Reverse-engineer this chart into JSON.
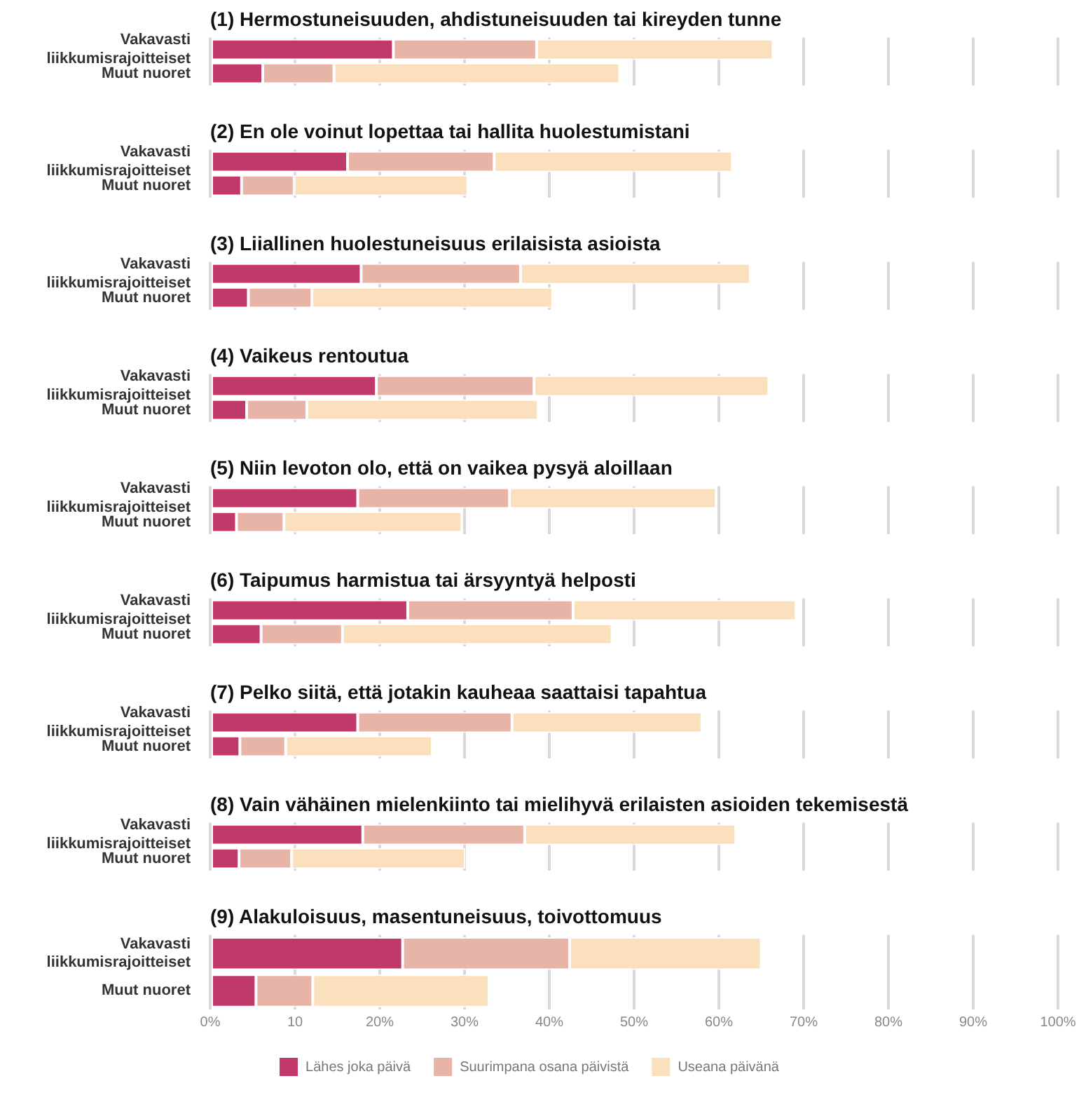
{
  "chart_data": [
    {
      "type": "bar",
      "orientation": "horizontal",
      "stacked": true,
      "title": "(1) Hermostuneisuuden, ahdistuneisuuden tai kireyden tunne",
      "categories": [
        "Vakavasti liikkumisrajoitteiset",
        "Muut nuoret"
      ],
      "series": [
        {
          "color": "#c0396b",
          "values": [
            21.6,
            6.2
          ]
        },
        {
          "color": "#e8b4a8",
          "values": [
            16.9,
            8.4
          ]
        },
        {
          "color": "#fbe0bd",
          "values": [
            27.9,
            33.7
          ]
        }
      ],
      "xlim": [
        0,
        100
      ],
      "xticks": [
        {
          "value": 0,
          "label": null
        },
        {
          "value": 10,
          "label": null
        },
        {
          "value": 20,
          "label": null
        },
        {
          "value": 30,
          "label": null
        },
        {
          "value": 40,
          "label": null
        },
        {
          "value": 50,
          "label": null
        },
        {
          "value": 60,
          "label": null
        },
        {
          "value": 70,
          "label": null
        },
        {
          "value": 80,
          "label": null
        },
        {
          "value": 90,
          "label": null
        },
        {
          "value": 100,
          "label": null
        }
      ],
      "grid": "x",
      "tick_labels": "y"
    },
    {
      "type": "bar",
      "orientation": "horizontal",
      "stacked": true,
      "title": "(2) En ole voinut lopettaa tai hallita huolestumistani",
      "categories": [
        "Vakavasti liikkumisrajoitteiset",
        "Muut nuoret"
      ],
      "series": [
        {
          "color": "#c0396b",
          "values": [
            16.2,
            3.7
          ]
        },
        {
          "color": "#e8b4a8",
          "values": [
            17.3,
            6.2
          ]
        },
        {
          "color": "#fbe0bd",
          "values": [
            28.1,
            20.5
          ]
        }
      ],
      "xlim": [
        0,
        100
      ],
      "xticks": [
        {
          "value": 0,
          "label": null
        },
        {
          "value": 10,
          "label": null
        },
        {
          "value": 20,
          "label": null
        },
        {
          "value": 30,
          "label": null
        },
        {
          "value": 40,
          "label": null
        },
        {
          "value": 50,
          "label": null
        },
        {
          "value": 60,
          "label": null
        },
        {
          "value": 70,
          "label": null
        },
        {
          "value": 80,
          "label": null
        },
        {
          "value": 90,
          "label": null
        },
        {
          "value": 100,
          "label": null
        }
      ],
      "grid": "x",
      "tick_labels": "y"
    },
    {
      "type": "bar",
      "orientation": "horizontal",
      "stacked": true,
      "title": "(3) Liiallinen huolestuneisuus erilaisista asioista",
      "categories": [
        "Vakavasti liikkumisrajoitteiset",
        "Muut nuoret"
      ],
      "series": [
        {
          "color": "#c0396b",
          "values": [
            17.8,
            4.5
          ]
        },
        {
          "color": "#e8b4a8",
          "values": [
            18.8,
            7.5
          ]
        },
        {
          "color": "#fbe0bd",
          "values": [
            27.1,
            28.4
          ]
        }
      ],
      "xlim": [
        0,
        100
      ],
      "xticks": [
        {
          "value": 0,
          "label": null
        },
        {
          "value": 10,
          "label": null
        },
        {
          "value": 20,
          "label": null
        },
        {
          "value": 30,
          "label": null
        },
        {
          "value": 40,
          "label": null
        },
        {
          "value": 50,
          "label": null
        },
        {
          "value": 60,
          "label": null
        },
        {
          "value": 70,
          "label": null
        },
        {
          "value": 80,
          "label": null
        },
        {
          "value": 90,
          "label": null
        },
        {
          "value": 100,
          "label": null
        }
      ],
      "grid": "x",
      "tick_labels": "y"
    },
    {
      "type": "bar",
      "orientation": "horizontal",
      "stacked": true,
      "title": "(4) Vaikeus rentoutua",
      "categories": [
        "Vakavasti liikkumisrajoitteiset",
        "Muut nuoret"
      ],
      "series": [
        {
          "color": "#c0396b",
          "values": [
            19.6,
            4.3
          ]
        },
        {
          "color": "#e8b4a8",
          "values": [
            18.6,
            7.1
          ]
        },
        {
          "color": "#fbe0bd",
          "values": [
            27.7,
            27.3
          ]
        }
      ],
      "xlim": [
        0,
        100
      ],
      "xticks": [
        {
          "value": 0,
          "label": null
        },
        {
          "value": 10,
          "label": null
        },
        {
          "value": 20,
          "label": null
        },
        {
          "value": 30,
          "label": null
        },
        {
          "value": 40,
          "label": null
        },
        {
          "value": 50,
          "label": null
        },
        {
          "value": 60,
          "label": null
        },
        {
          "value": 70,
          "label": null
        },
        {
          "value": 80,
          "label": null
        },
        {
          "value": 90,
          "label": null
        },
        {
          "value": 100,
          "label": null
        }
      ],
      "grid": "x",
      "tick_labels": "y"
    },
    {
      "type": "bar",
      "orientation": "horizontal",
      "stacked": true,
      "title": "(5) Niin levoton olo, että on vaikea pysyä aloillaan",
      "categories": [
        "Vakavasti liikkumisrajoitteiset",
        "Muut nuoret"
      ],
      "series": [
        {
          "color": "#c0396b",
          "values": [
            17.4,
            3.1
          ]
        },
        {
          "color": "#e8b4a8",
          "values": [
            17.9,
            5.6
          ]
        },
        {
          "color": "#fbe0bd",
          "values": [
            24.4,
            21.0
          ]
        }
      ],
      "xlim": [
        0,
        100
      ],
      "xticks": [
        {
          "value": 0,
          "label": null
        },
        {
          "value": 10,
          "label": null
        },
        {
          "value": 20,
          "label": null
        },
        {
          "value": 30,
          "label": null
        },
        {
          "value": 40,
          "label": null
        },
        {
          "value": 50,
          "label": null
        },
        {
          "value": 60,
          "label": null
        },
        {
          "value": 70,
          "label": null
        },
        {
          "value": 80,
          "label": null
        },
        {
          "value": 90,
          "label": null
        },
        {
          "value": 100,
          "label": null
        }
      ],
      "grid": "x",
      "tick_labels": "y"
    },
    {
      "type": "bar",
      "orientation": "horizontal",
      "stacked": true,
      "title": "(6) Taipumus harmistua tai ärsyyntyä helposti",
      "categories": [
        "Vakavasti liikkumisrajoitteiset",
        "Muut nuoret"
      ],
      "series": [
        {
          "color": "#c0396b",
          "values": [
            23.3,
            6.0
          ]
        },
        {
          "color": "#e8b4a8",
          "values": [
            19.5,
            9.6
          ]
        },
        {
          "color": "#fbe0bd",
          "values": [
            26.3,
            31.8
          ]
        }
      ],
      "xlim": [
        0,
        100
      ],
      "xticks": [
        {
          "value": 0,
          "label": null
        },
        {
          "value": 10,
          "label": null
        },
        {
          "value": 20,
          "label": null
        },
        {
          "value": 30,
          "label": null
        },
        {
          "value": 40,
          "label": null
        },
        {
          "value": 50,
          "label": null
        },
        {
          "value": 60,
          "label": null
        },
        {
          "value": 70,
          "label": null
        },
        {
          "value": 80,
          "label": null
        },
        {
          "value": 90,
          "label": null
        },
        {
          "value": 100,
          "label": null
        }
      ],
      "grid": "x",
      "tick_labels": "y"
    },
    {
      "type": "bar",
      "orientation": "horizontal",
      "stacked": true,
      "title": "(7) Pelko siitä, että jotakin kauheaa saattaisi tapahtua",
      "categories": [
        "Vakavasti liikkumisrajoitteiset",
        "Muut nuoret"
      ],
      "series": [
        {
          "color": "#c0396b",
          "values": [
            17.4,
            3.5
          ]
        },
        {
          "color": "#e8b4a8",
          "values": [
            18.2,
            5.4
          ]
        },
        {
          "color": "#fbe0bd",
          "values": [
            22.4,
            17.3
          ]
        }
      ],
      "xlim": [
        0,
        100
      ],
      "xticks": [
        {
          "value": 0,
          "label": null
        },
        {
          "value": 10,
          "label": null
        },
        {
          "value": 20,
          "label": null
        },
        {
          "value": 30,
          "label": null
        },
        {
          "value": 40,
          "label": null
        },
        {
          "value": 50,
          "label": null
        },
        {
          "value": 60,
          "label": null
        },
        {
          "value": 70,
          "label": null
        },
        {
          "value": 80,
          "label": null
        },
        {
          "value": 90,
          "label": null
        },
        {
          "value": 100,
          "label": null
        }
      ],
      "grid": "x",
      "tick_labels": "y"
    },
    {
      "type": "bar",
      "orientation": "horizontal",
      "stacked": true,
      "title": "(8) Vain vähäinen mielenkiinto tai mielihyvä erilaisten asioiden tekemisestä",
      "categories": [
        "Vakavasti liikkumisrajoitteiset",
        "Muut nuoret"
      ],
      "series": [
        {
          "color": "#c0396b",
          "values": [
            18.0,
            3.4
          ]
        },
        {
          "color": "#e8b4a8",
          "values": [
            19.1,
            6.2
          ]
        },
        {
          "color": "#fbe0bd",
          "values": [
            24.9,
            20.5
          ]
        }
      ],
      "xlim": [
        0,
        100
      ],
      "xticks": [
        {
          "value": 0,
          "label": null
        },
        {
          "value": 10,
          "label": null
        },
        {
          "value": 20,
          "label": null
        },
        {
          "value": 30,
          "label": null
        },
        {
          "value": 40,
          "label": null
        },
        {
          "value": 50,
          "label": null
        },
        {
          "value": 60,
          "label": null
        },
        {
          "value": 70,
          "label": null
        },
        {
          "value": 80,
          "label": null
        },
        {
          "value": 90,
          "label": null
        },
        {
          "value": 100,
          "label": null
        }
      ],
      "grid": "x",
      "tick_labels": "y"
    },
    {
      "type": "bar",
      "orientation": "horizontal",
      "stacked": true,
      "title": "(9) Alakuloisuus, masentuneisuus, toivottomuus",
      "categories": [
        "Vakavasti liikkumisrajoitteiset",
        "Muut nuoret"
      ],
      "series": [
        {
          "name": "Lähes joka päivä",
          "color": "#c0396b",
          "values": [
            22.7,
            5.4
          ]
        },
        {
          "name": "Suurimpana osana päivistä",
          "color": "#e8b4a8",
          "values": [
            19.7,
            6.7
          ]
        },
        {
          "name": "Useana päivänä",
          "color": "#fbe0bd",
          "values": [
            22.6,
            20.8
          ]
        }
      ],
      "xlim": [
        0,
        100
      ],
      "xticks": [
        {
          "value": 0,
          "label": "0%"
        },
        {
          "value": 10,
          "label": "10"
        },
        {
          "value": 20,
          "label": "20%"
        },
        {
          "value": 30,
          "label": "30%"
        },
        {
          "value": 40,
          "label": "40%"
        },
        {
          "value": 50,
          "label": "50%"
        },
        {
          "value": 60,
          "label": "60%"
        },
        {
          "value": 70,
          "label": "70%"
        },
        {
          "value": 80,
          "label": "80%"
        },
        {
          "value": 90,
          "label": "90%"
        },
        {
          "value": 100,
          "label": "100%"
        }
      ],
      "grid": "x",
      "legend": "bottom"
    }
  ]
}
